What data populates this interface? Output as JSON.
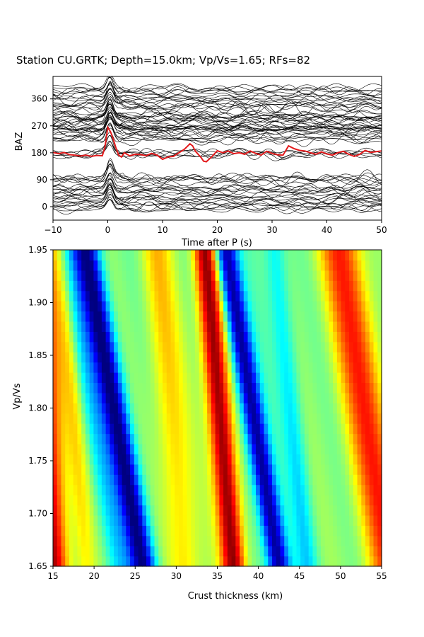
{
  "figure": {
    "title": "Station CU.GRTK; Depth=15.0km; Vp/Vs=1.65; RFs=82"
  },
  "chart_data": [
    {
      "type": "line",
      "name": "receiver-function-traces",
      "xlabel": "Time after P (s)",
      "ylabel": "BAZ",
      "xlim": [
        -10,
        50
      ],
      "ylim": [
        -45,
        435
      ],
      "xticks": [
        -10,
        0,
        10,
        20,
        30,
        40,
        50
      ],
      "yticks": [
        0,
        90,
        180,
        270,
        360
      ],
      "trace_count": 82,
      "trace_color": "#000000",
      "stack_color": "#e31a1c",
      "stack_baseline_baz": 180,
      "stack": {
        "x": [
          -10,
          -9,
          -8,
          -7,
          -6,
          -5,
          -4,
          -3,
          -2,
          -1,
          -0.5,
          0,
          0.5,
          1,
          1.5,
          2,
          2.5,
          3,
          4,
          5,
          6,
          7,
          8,
          9,
          10,
          11,
          12,
          13,
          14,
          15,
          15.5,
          16,
          17,
          17.5,
          18,
          19,
          20,
          21,
          22,
          23,
          24,
          25,
          26,
          27,
          28,
          29,
          30,
          31,
          32,
          33,
          34,
          35,
          36,
          37,
          38,
          39,
          40,
          41,
          42,
          43,
          44,
          45,
          46,
          47,
          48,
          49,
          50
        ],
        "y": [
          181,
          177,
          181,
          174,
          172,
          169,
          172,
          168,
          171,
          170,
          200,
          265,
          250,
          225,
          196,
          172,
          166,
          180,
          170,
          175,
          174,
          170,
          178,
          172,
          158,
          166,
          168,
          180,
          192,
          210,
          203,
          185,
          165,
          152,
          150,
          167,
          187,
          180,
          186,
          177,
          180,
          175,
          186,
          178,
          172,
          185,
          178,
          173,
          172,
          203,
          194,
          188,
          186,
          180,
          175,
          183,
          176,
          172,
          180,
          185,
          175,
          168,
          175,
          188,
          181,
          184,
          186
        ]
      },
      "group_centers_baz": [
        0,
        30,
        60,
        90,
        180,
        230,
        255,
        270,
        285,
        300,
        330,
        360,
        390
      ]
    },
    {
      "type": "heatmap",
      "name": "h-kappa-stack",
      "xlabel": "Crust thickness (km)",
      "ylabel": "Vp/Vs",
      "xlim": [
        15,
        55
      ],
      "ylim": [
        1.65,
        1.95
      ],
      "xticks": [
        15,
        20,
        25,
        30,
        35,
        40,
        45,
        50,
        55
      ],
      "yticks": [
        1.65,
        1.7,
        1.75,
        1.8,
        1.85,
        1.9,
        1.95
      ],
      "colormap": "jet",
      "features": [
        {
          "kind": "low",
          "H_at_bottom": 26.0,
          "H_at_top": 19.0,
          "strength": 1.0,
          "width_km": 1.6
        },
        {
          "kind": "high",
          "H_at_bottom": 37.0,
          "H_at_top": 33.5,
          "strength": 1.0,
          "width_km": 1.5
        },
        {
          "kind": "low",
          "H_at_bottom": 42.5,
          "H_at_top": 36.0,
          "strength": 1.0,
          "width_km": 1.4
        },
        {
          "kind": "high",
          "H_at_bottom": 15.0,
          "H_at_top": 13.0,
          "strength": 0.9,
          "width_km": 2.0
        },
        {
          "kind": "high",
          "H_at_bottom": 19.0,
          "H_at_top": 16.0,
          "strength": 0.25,
          "width_km": 1.2
        },
        {
          "kind": "low",
          "H_at_bottom": 23.0,
          "H_at_top": 16.5,
          "strength": 0.3,
          "width_km": 1.5
        },
        {
          "kind": "high",
          "H_at_bottom": 31.0,
          "H_at_top": 27.5,
          "strength": 0.35,
          "width_km": 2.0
        },
        {
          "kind": "high",
          "H_at_bottom": 56.0,
          "H_at_top": 50.0,
          "strength": 0.65,
          "width_km": 2.8
        },
        {
          "kind": "low",
          "H_at_bottom": 46.0,
          "H_at_top": 42.0,
          "strength": 0.3,
          "width_km": 1.3
        }
      ]
    }
  ]
}
